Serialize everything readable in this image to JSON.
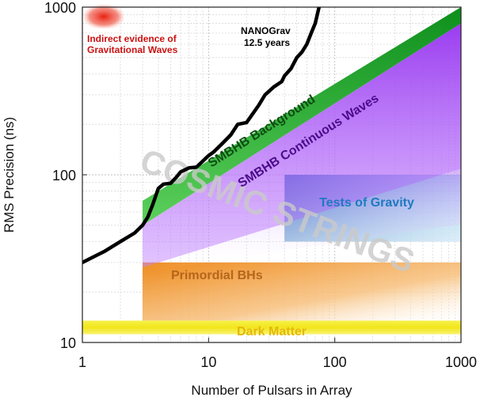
{
  "chart_data": {
    "type": "line",
    "xlabel": "Number of Pulsars in Array",
    "ylabel": "RMS Precision (ns)",
    "x_scale": "log",
    "y_scale": "log",
    "xlim": [
      1,
      1000
    ],
    "ylim": [
      10,
      1000
    ],
    "grid": true,
    "x_ticks": [
      1,
      10,
      100,
      1000
    ],
    "x_tick_labels": [
      "1",
      "10",
      "100",
      "1000"
    ],
    "y_ticks": [
      10,
      100,
      1000
    ],
    "y_tick_labels": [
      "10",
      "100",
      "1000"
    ],
    "series": [
      {
        "name": "NANOGrav 12.5 years",
        "color": "#000000",
        "x": [
          1,
          1.5,
          2,
          2.6,
          3,
          3.3,
          3.6,
          4,
          4.4,
          5,
          5.5,
          6,
          7,
          8,
          10,
          11,
          13,
          15,
          17,
          20,
          25,
          28,
          33,
          38,
          40,
          45,
          50,
          55,
          60,
          65,
          70,
          75
        ],
        "y": [
          30,
          35,
          40,
          45,
          50,
          56,
          66,
          83,
          88,
          89,
          96,
          104,
          110,
          111,
          130,
          137,
          155,
          173,
          200,
          205,
          260,
          300,
          335,
          360,
          390,
          430,
          500,
          540,
          600,
          700,
          800,
          1000
        ]
      }
    ],
    "bands": [
      {
        "label": "SMBHB Background",
        "color": "#2aa52a",
        "x": [
          3,
          1000
        ],
        "lower": [
          50,
          800
        ],
        "upper": [
          70,
          1000
        ]
      },
      {
        "label": "SMBHB Continuous Waves",
        "color": "#a14ef0",
        "x": [
          3,
          1000
        ],
        "lower": [
          28,
          400
        ],
        "upper": [
          50,
          800
        ]
      }
    ],
    "regions": [
      {
        "label": "Tests of Gravity",
        "x": [
          40,
          1000
        ],
        "y": [
          40,
          100
        ],
        "color": "#1d7cc0",
        "label_color": "#1f79c0"
      },
      {
        "label": "Primordial BHs",
        "x": [
          3,
          1000
        ],
        "y": [
          13.5,
          30
        ],
        "color": "#f08a1c",
        "label_color": "#b5651c"
      },
      {
        "label": "Dark Matter",
        "x": [
          1,
          1000
        ],
        "y": [
          11.2,
          13.5
        ],
        "color": "#f4ec2a",
        "label_color": "#e4b80c"
      }
    ],
    "annotations": [
      {
        "text": "COSMIC STRINGS",
        "color": "#c8c8c8"
      },
      {
        "text": "Indirect evidence of",
        "color": "#cc1111"
      },
      {
        "text": "Gravitational Waves",
        "color": "#cc1111"
      },
      {
        "text": "NANOGrav",
        "color": "#000000"
      },
      {
        "text": "12.5 years",
        "color": "#000000"
      }
    ]
  }
}
